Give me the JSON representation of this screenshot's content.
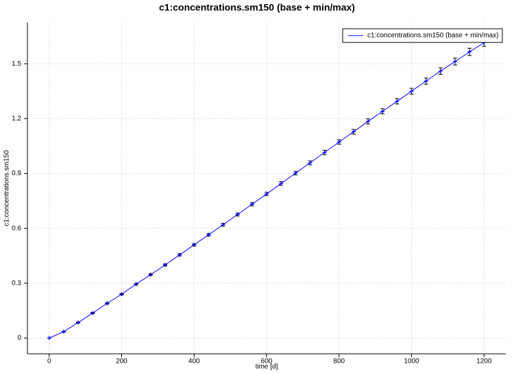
{
  "chart_data": {
    "type": "errorbar_line",
    "title": "c1:concentrations.sm150 (base + min/max)",
    "x_label": "time [d]",
    "y_label": "c1:concentrations.sm150",
    "x": [
      0,
      40,
      80,
      120,
      160,
      200,
      240,
      280,
      320,
      360,
      400,
      440,
      480,
      520,
      560,
      600,
      640,
      680,
      720,
      760,
      800,
      840,
      880,
      920,
      960,
      1000,
      1040,
      1080,
      1120,
      1160,
      1200
    ],
    "series": [
      {
        "name": "c1:concentrations.sm150 (base + min/max)",
        "color": "#0000ff",
        "values": [
          0,
          0.035,
          0.085,
          0.137,
          0.19,
          0.24,
          0.295,
          0.347,
          0.4,
          0.455,
          0.51,
          0.565,
          0.62,
          0.676,
          0.732,
          0.788,
          0.845,
          0.902,
          0.958,
          1.015,
          1.072,
          1.128,
          1.185,
          1.24,
          1.295,
          1.35,
          1.405,
          1.46,
          1.512,
          1.565,
          1.615
        ],
        "errors": [
          0,
          0.002,
          0.003,
          0.003,
          0.004,
          0.004,
          0.004,
          0.005,
          0.005,
          0.006,
          0.006,
          0.007,
          0.007,
          0.008,
          0.009,
          0.009,
          0.01,
          0.01,
          0.011,
          0.012,
          0.012,
          0.013,
          0.014,
          0.014,
          0.015,
          0.016,
          0.017,
          0.018,
          0.019,
          0.02,
          0.02
        ]
      }
    ],
    "xlim": [
      -60,
      1260
    ],
    "ylim": [
      -0.086,
      1.725
    ],
    "xticks": [
      0,
      200,
      400,
      600,
      800,
      1000,
      1200
    ],
    "yticks": [
      0,
      0.3,
      0.6,
      0.9,
      1.2,
      1.5
    ],
    "grid": true,
    "legend": "upper right"
  }
}
